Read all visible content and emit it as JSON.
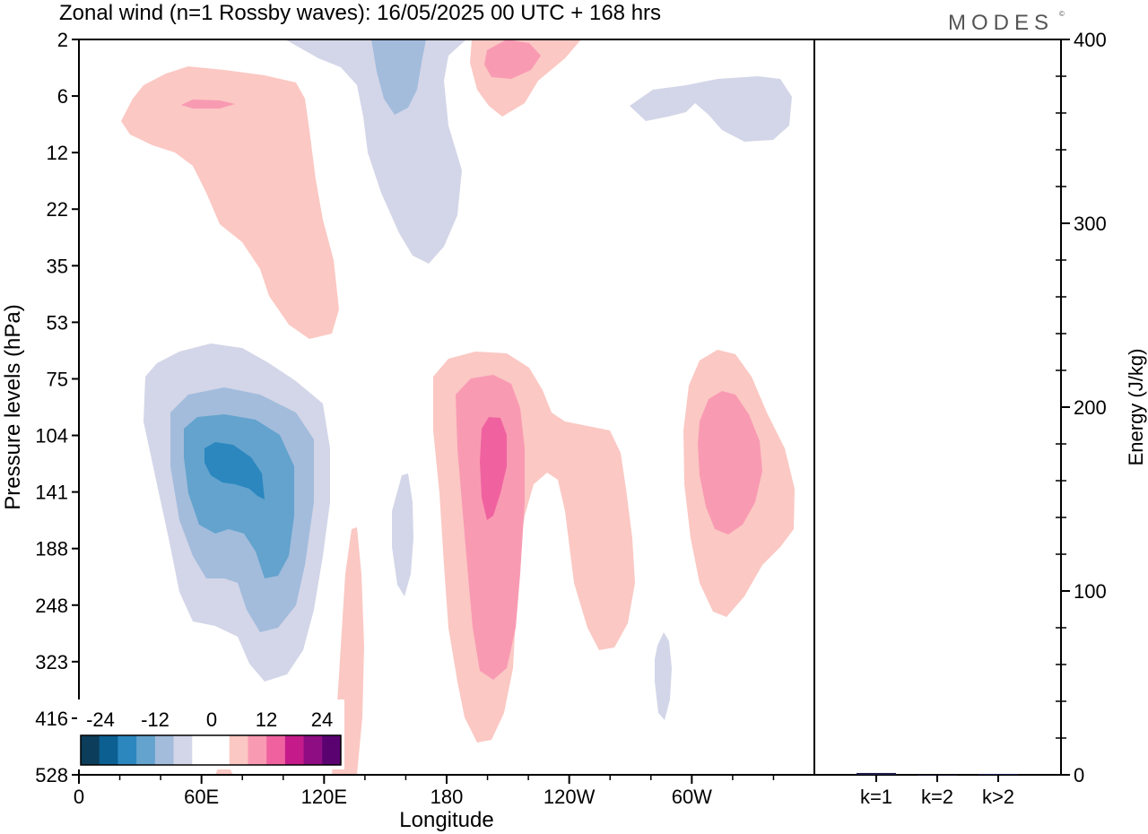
{
  "header": {
    "title": "Zonal wind (n=1 Rossby waves):  16/05/2025  00 UTC  + 168 hrs",
    "brand": "MODES",
    "brand_mark": "©"
  },
  "chart_data": [
    {
      "type": "contour",
      "xlabel": "Longitude",
      "ylabel": "Pressure levels (hPa)",
      "x_ticks": [
        "0",
        "60E",
        "120E",
        "180",
        "120W",
        "60W"
      ],
      "x_tick_values_deg": [
        0,
        60,
        120,
        180,
        240,
        300
      ],
      "xlim": [
        0,
        360
      ],
      "y_ticks": [
        "2",
        "6",
        "12",
        "22",
        "35",
        "53",
        "75",
        "104",
        "141",
        "188",
        "248",
        "323",
        "416",
        "528"
      ],
      "y_scale": "pressure-levels",
      "colorbar": {
        "labels": [
          "-24",
          "-12",
          "0",
          "12",
          "24"
        ],
        "colors": [
          "#0c3d5a",
          "#0b5f91",
          "#2c87bf",
          "#63a3cd",
          "#a3bcdc",
          "#d3d6e8",
          "#ffffff",
          "#ffffff",
          "#fbc8c3",
          "#f99ab3",
          "#f0629f",
          "#c51b8a",
          "#8f0d82",
          "#5b0271"
        ],
        "placement": "bottom-left"
      },
      "features": [
        {
          "sign": "positive",
          "level": 1,
          "approx_center_deg": 45,
          "approx_levels": "6-53"
        },
        {
          "sign": "negative",
          "level": 1,
          "approx_center_deg": 155,
          "approx_levels": "2-35"
        },
        {
          "sign": "negative",
          "level": 2,
          "approx_center_deg": 155,
          "approx_levels": "2-6"
        },
        {
          "sign": "positive",
          "level": 2,
          "approx_center_deg": 200,
          "approx_levels": "2-6"
        },
        {
          "sign": "negative",
          "level": 4,
          "approx_center_deg": 70,
          "approx_levels": "104-188"
        },
        {
          "sign": "positive",
          "level": 3,
          "approx_center_deg": 200,
          "approx_levels": "104-323"
        },
        {
          "sign": "positive",
          "level": 2,
          "approx_center_deg": 312,
          "approx_levels": "75-248"
        }
      ]
    },
    {
      "type": "bar",
      "categories": [
        "k=1",
        "k=2",
        "k>2"
      ],
      "values": [
        1,
        0,
        0.5
      ],
      "ylabel": "Energy (J/kg)",
      "ylim": [
        0,
        400
      ],
      "y_ticks": [
        "0",
        "100",
        "200",
        "300",
        "400"
      ]
    }
  ]
}
